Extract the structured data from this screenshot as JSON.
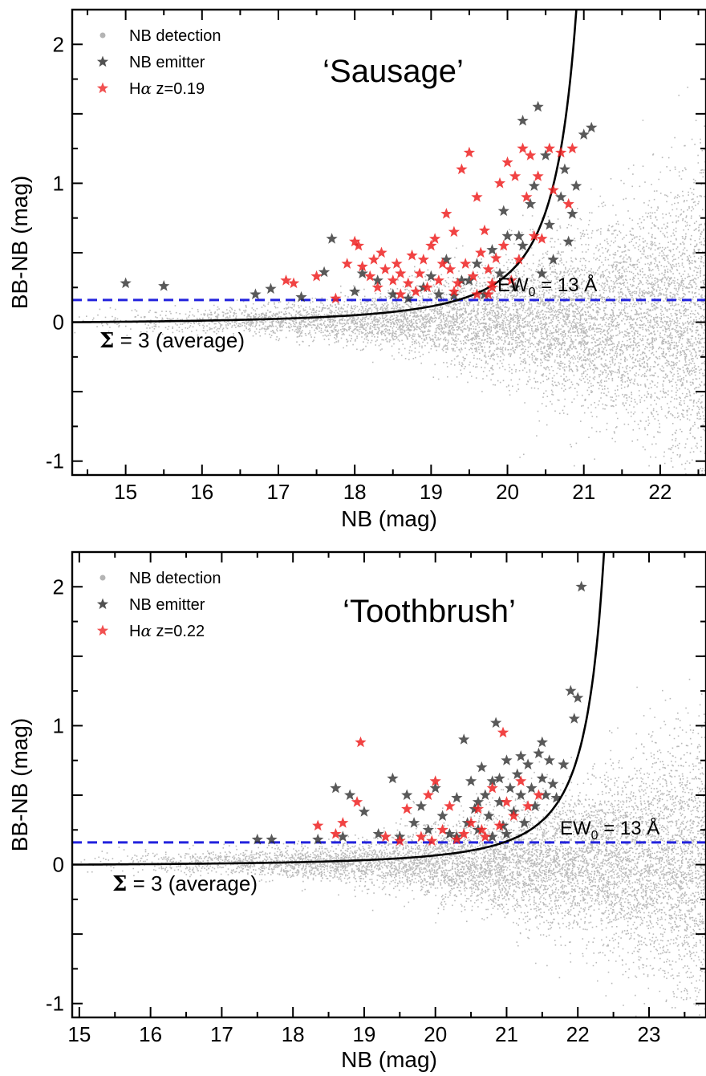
{
  "chart_data": [
    {
      "type": "scatter",
      "panel_label": "‘Sausage’",
      "xlabel": "NB (mag)",
      "ylabel": "BB-NB (mag)",
      "xlim": [
        14.3,
        22.6
      ],
      "ylim": [
        -1.1,
        2.25
      ],
      "xticks": [
        15,
        16,
        17,
        18,
        19,
        20,
        21,
        22
      ],
      "yticks": [
        -1,
        0,
        1,
        2
      ],
      "grid": false,
      "legend_position": "top-left",
      "legend": [
        {
          "label": "NB detection",
          "marker": "dot",
          "color": "#b4b4b4"
        },
        {
          "label": "NB emitter",
          "marker": "star",
          "color": "#333333"
        },
        {
          "label_prefix": "H",
          "label_greek": "α",
          "label_suffix": " z=0.19",
          "marker": "star",
          "color": "#ee3333"
        }
      ],
      "ew_line": {
        "y": 0.16,
        "label_main": "EW",
        "label_sub": "0",
        "label_rest": " = 13 Å",
        "color": "#2222dd"
      },
      "sigma_curve": {
        "label_symbol": "Σ",
        "label_rest": " = 3 (average)",
        "x_at_y_equals_1": 20.6,
        "vertical_x": 21.5
      },
      "series": [
        {
          "role": "NB emitter",
          "points": [
            [
              15.0,
              0.28
            ],
            [
              15.5,
              0.26
            ],
            [
              16.7,
              0.2
            ],
            [
              16.9,
              0.24
            ],
            [
              17.3,
              0.18
            ],
            [
              17.6,
              0.36
            ],
            [
              17.7,
              0.6
            ],
            [
              18.0,
              0.22
            ],
            [
              18.3,
              0.3
            ],
            [
              18.5,
              0.2
            ],
            [
              18.7,
              0.17
            ],
            [
              18.9,
              0.25
            ],
            [
              19.0,
              0.33
            ],
            [
              19.1,
              0.2
            ],
            [
              19.2,
              0.45
            ],
            [
              19.3,
              0.19
            ],
            [
              19.4,
              0.3
            ],
            [
              19.6,
              0.42
            ],
            [
              19.7,
              0.2
            ],
            [
              19.8,
              0.52
            ],
            [
              19.9,
              0.35
            ],
            [
              20.0,
              0.62
            ],
            [
              20.1,
              0.25
            ],
            [
              20.2,
              0.55
            ],
            [
              20.3,
              0.85
            ],
            [
              20.4,
              1.55
            ],
            [
              20.5,
              1.2
            ],
            [
              20.55,
              0.7
            ],
            [
              20.6,
              0.45
            ],
            [
              20.7,
              0.9
            ],
            [
              20.75,
              1.1
            ],
            [
              20.8,
              0.58
            ],
            [
              20.85,
              0.78
            ],
            [
              20.9,
              0.98
            ],
            [
              21.0,
              1.35
            ],
            [
              21.1,
              1.4
            ],
            [
              20.35,
              0.98
            ],
            [
              20.2,
              1.45
            ],
            [
              20.15,
              0.62
            ],
            [
              19.95,
              0.8
            ],
            [
              20.45,
              0.35
            ],
            [
              19.5,
              0.3
            ],
            [
              18.1,
              0.35
            ]
          ]
        },
        {
          "role": "Halpha",
          "points": [
            [
              17.1,
              0.3
            ],
            [
              17.2,
              0.28
            ],
            [
              17.5,
              0.33
            ],
            [
              17.75,
              0.17
            ],
            [
              17.9,
              0.42
            ],
            [
              18.0,
              0.58
            ],
            [
              18.05,
              0.55
            ],
            [
              18.1,
              0.4
            ],
            [
              18.2,
              0.33
            ],
            [
              18.25,
              0.45
            ],
            [
              18.3,
              0.25
            ],
            [
              18.35,
              0.5
            ],
            [
              18.4,
              0.38
            ],
            [
              18.5,
              0.3
            ],
            [
              18.55,
              0.42
            ],
            [
              18.6,
              0.35
            ],
            [
              18.7,
              0.28
            ],
            [
              18.75,
              0.48
            ],
            [
              18.8,
              0.22
            ],
            [
              18.85,
              0.35
            ],
            [
              18.9,
              0.45
            ],
            [
              18.95,
              0.25
            ],
            [
              19.0,
              0.55
            ],
            [
              19.05,
              0.6
            ],
            [
              19.1,
              0.3
            ],
            [
              19.15,
              0.42
            ],
            [
              19.2,
              0.78
            ],
            [
              19.25,
              0.38
            ],
            [
              19.3,
              0.65
            ],
            [
              19.35,
              0.28
            ],
            [
              19.4,
              1.1
            ],
            [
              19.45,
              0.42
            ],
            [
              19.5,
              1.22
            ],
            [
              19.55,
              0.33
            ],
            [
              19.6,
              0.9
            ],
            [
              19.65,
              0.5
            ],
            [
              19.7,
              0.66
            ],
            [
              19.75,
              0.38
            ],
            [
              19.8,
              0.28
            ],
            [
              19.85,
              0.46
            ],
            [
              19.9,
              1.0
            ],
            [
              19.95,
              0.55
            ],
            [
              20.0,
              1.15
            ],
            [
              20.05,
              0.3
            ],
            [
              20.1,
              1.05
            ],
            [
              20.15,
              0.45
            ],
            [
              20.2,
              1.25
            ],
            [
              20.25,
              0.9
            ],
            [
              20.3,
              1.2
            ],
            [
              20.35,
              0.62
            ],
            [
              20.4,
              1.05
            ],
            [
              20.45,
              0.6
            ],
            [
              20.55,
              1.25
            ],
            [
              20.6,
              0.95
            ],
            [
              20.7,
              1.22
            ],
            [
              20.8,
              0.85
            ],
            [
              20.85,
              1.25
            ],
            [
              19.6,
              0.2
            ],
            [
              19.8,
              0.25
            ],
            [
              19.3,
              0.22
            ],
            [
              19.75,
              0.2
            ],
            [
              18.6,
              0.2
            ]
          ]
        }
      ]
    },
    {
      "type": "scatter",
      "panel_label": "‘Toothbrush’",
      "xlabel": "NB (mag)",
      "ylabel": "BB-NB (mag)",
      "xlim": [
        14.9,
        23.8
      ],
      "ylim": [
        -1.1,
        2.25
      ],
      "xticks": [
        15,
        16,
        17,
        18,
        19,
        20,
        21,
        22,
        23
      ],
      "yticks": [
        -1,
        0,
        1,
        2
      ],
      "grid": false,
      "legend_position": "top-left",
      "legend": [
        {
          "label": "NB detection",
          "marker": "dot",
          "color": "#b4b4b4"
        },
        {
          "label": "NB emitter",
          "marker": "star",
          "color": "#333333"
        },
        {
          "label_prefix": "H",
          "label_greek": "α",
          "label_suffix": " z=0.22",
          "marker": "star",
          "color": "#ee3333"
        }
      ],
      "ew_line": {
        "y": 0.16,
        "label_main": "EW",
        "label_sub": "0",
        "label_rest": " = 13 Å",
        "color": "#2222dd"
      },
      "sigma_curve": {
        "label_symbol": "Σ",
        "label_rest": " = 3 (average)",
        "x_at_y_equals_1": 22.1,
        "vertical_x": 22.9
      },
      "series": [
        {
          "role": "NB emitter",
          "points": [
            [
              17.5,
              0.18
            ],
            [
              17.7,
              0.18
            ],
            [
              18.35,
              0.18
            ],
            [
              18.6,
              0.55
            ],
            [
              18.7,
              0.2
            ],
            [
              18.8,
              0.5
            ],
            [
              19.0,
              0.38
            ],
            [
              19.2,
              0.22
            ],
            [
              19.4,
              0.62
            ],
            [
              19.5,
              0.2
            ],
            [
              19.6,
              0.5
            ],
            [
              19.7,
              0.3
            ],
            [
              19.8,
              0.42
            ],
            [
              19.9,
              0.25
            ],
            [
              20.0,
              0.55
            ],
            [
              20.1,
              0.35
            ],
            [
              20.2,
              0.22
            ],
            [
              20.3,
              0.48
            ],
            [
              20.4,
              0.9
            ],
            [
              20.45,
              0.3
            ],
            [
              20.5,
              0.6
            ],
            [
              20.55,
              0.4
            ],
            [
              20.6,
              0.25
            ],
            [
              20.65,
              0.7
            ],
            [
              20.7,
              0.5
            ],
            [
              20.75,
              0.35
            ],
            [
              20.8,
              0.6
            ],
            [
              20.85,
              1.02
            ],
            [
              20.9,
              0.45
            ],
            [
              20.95,
              0.28
            ],
            [
              21.0,
              0.75
            ],
            [
              21.05,
              0.55
            ],
            [
              21.1,
              0.38
            ],
            [
              21.15,
              0.65
            ],
            [
              21.2,
              0.5
            ],
            [
              21.25,
              0.3
            ],
            [
              21.3,
              0.72
            ],
            [
              21.35,
              0.55
            ],
            [
              21.4,
              0.42
            ],
            [
              21.45,
              0.8
            ],
            [
              21.5,
              0.62
            ],
            [
              21.55,
              0.5
            ],
            [
              21.6,
              0.75
            ],
            [
              21.65,
              0.58
            ],
            [
              21.7,
              0.48
            ],
            [
              21.8,
              0.72
            ],
            [
              21.9,
              1.25
            ],
            [
              21.95,
              1.05
            ],
            [
              22.0,
              1.2
            ],
            [
              22.05,
              2.0
            ],
            [
              21.5,
              0.88
            ],
            [
              21.2,
              0.78
            ],
            [
              20.3,
              0.2
            ],
            [
              20.8,
              0.2
            ],
            [
              21.0,
              0.22
            ],
            [
              20.6,
              0.45
            ],
            [
              20.9,
              0.62
            ]
          ]
        },
        {
          "role": "Halpha",
          "points": [
            [
              18.35,
              0.28
            ],
            [
              18.6,
              0.22
            ],
            [
              18.7,
              0.3
            ],
            [
              18.9,
              0.45
            ],
            [
              18.95,
              0.88
            ],
            [
              19.3,
              0.2
            ],
            [
              19.5,
              0.17
            ],
            [
              19.6,
              0.4
            ],
            [
              19.8,
              0.2
            ],
            [
              19.9,
              0.5
            ],
            [
              19.95,
              0.17
            ],
            [
              20.0,
              0.6
            ],
            [
              20.1,
              0.25
            ],
            [
              20.2,
              0.42
            ],
            [
              20.3,
              0.18
            ],
            [
              20.5,
              0.3
            ],
            [
              20.6,
              0.4
            ],
            [
              20.7,
              0.2
            ],
            [
              20.8,
              0.55
            ],
            [
              20.9,
              0.28
            ],
            [
              20.95,
              0.95
            ],
            [
              21.0,
              0.45
            ],
            [
              21.1,
              0.35
            ],
            [
              21.2,
              0.6
            ],
            [
              21.3,
              0.42
            ],
            [
              21.45,
              0.5
            ],
            [
              20.4,
              0.22
            ],
            [
              20.65,
              0.25
            ]
          ]
        }
      ]
    }
  ]
}
